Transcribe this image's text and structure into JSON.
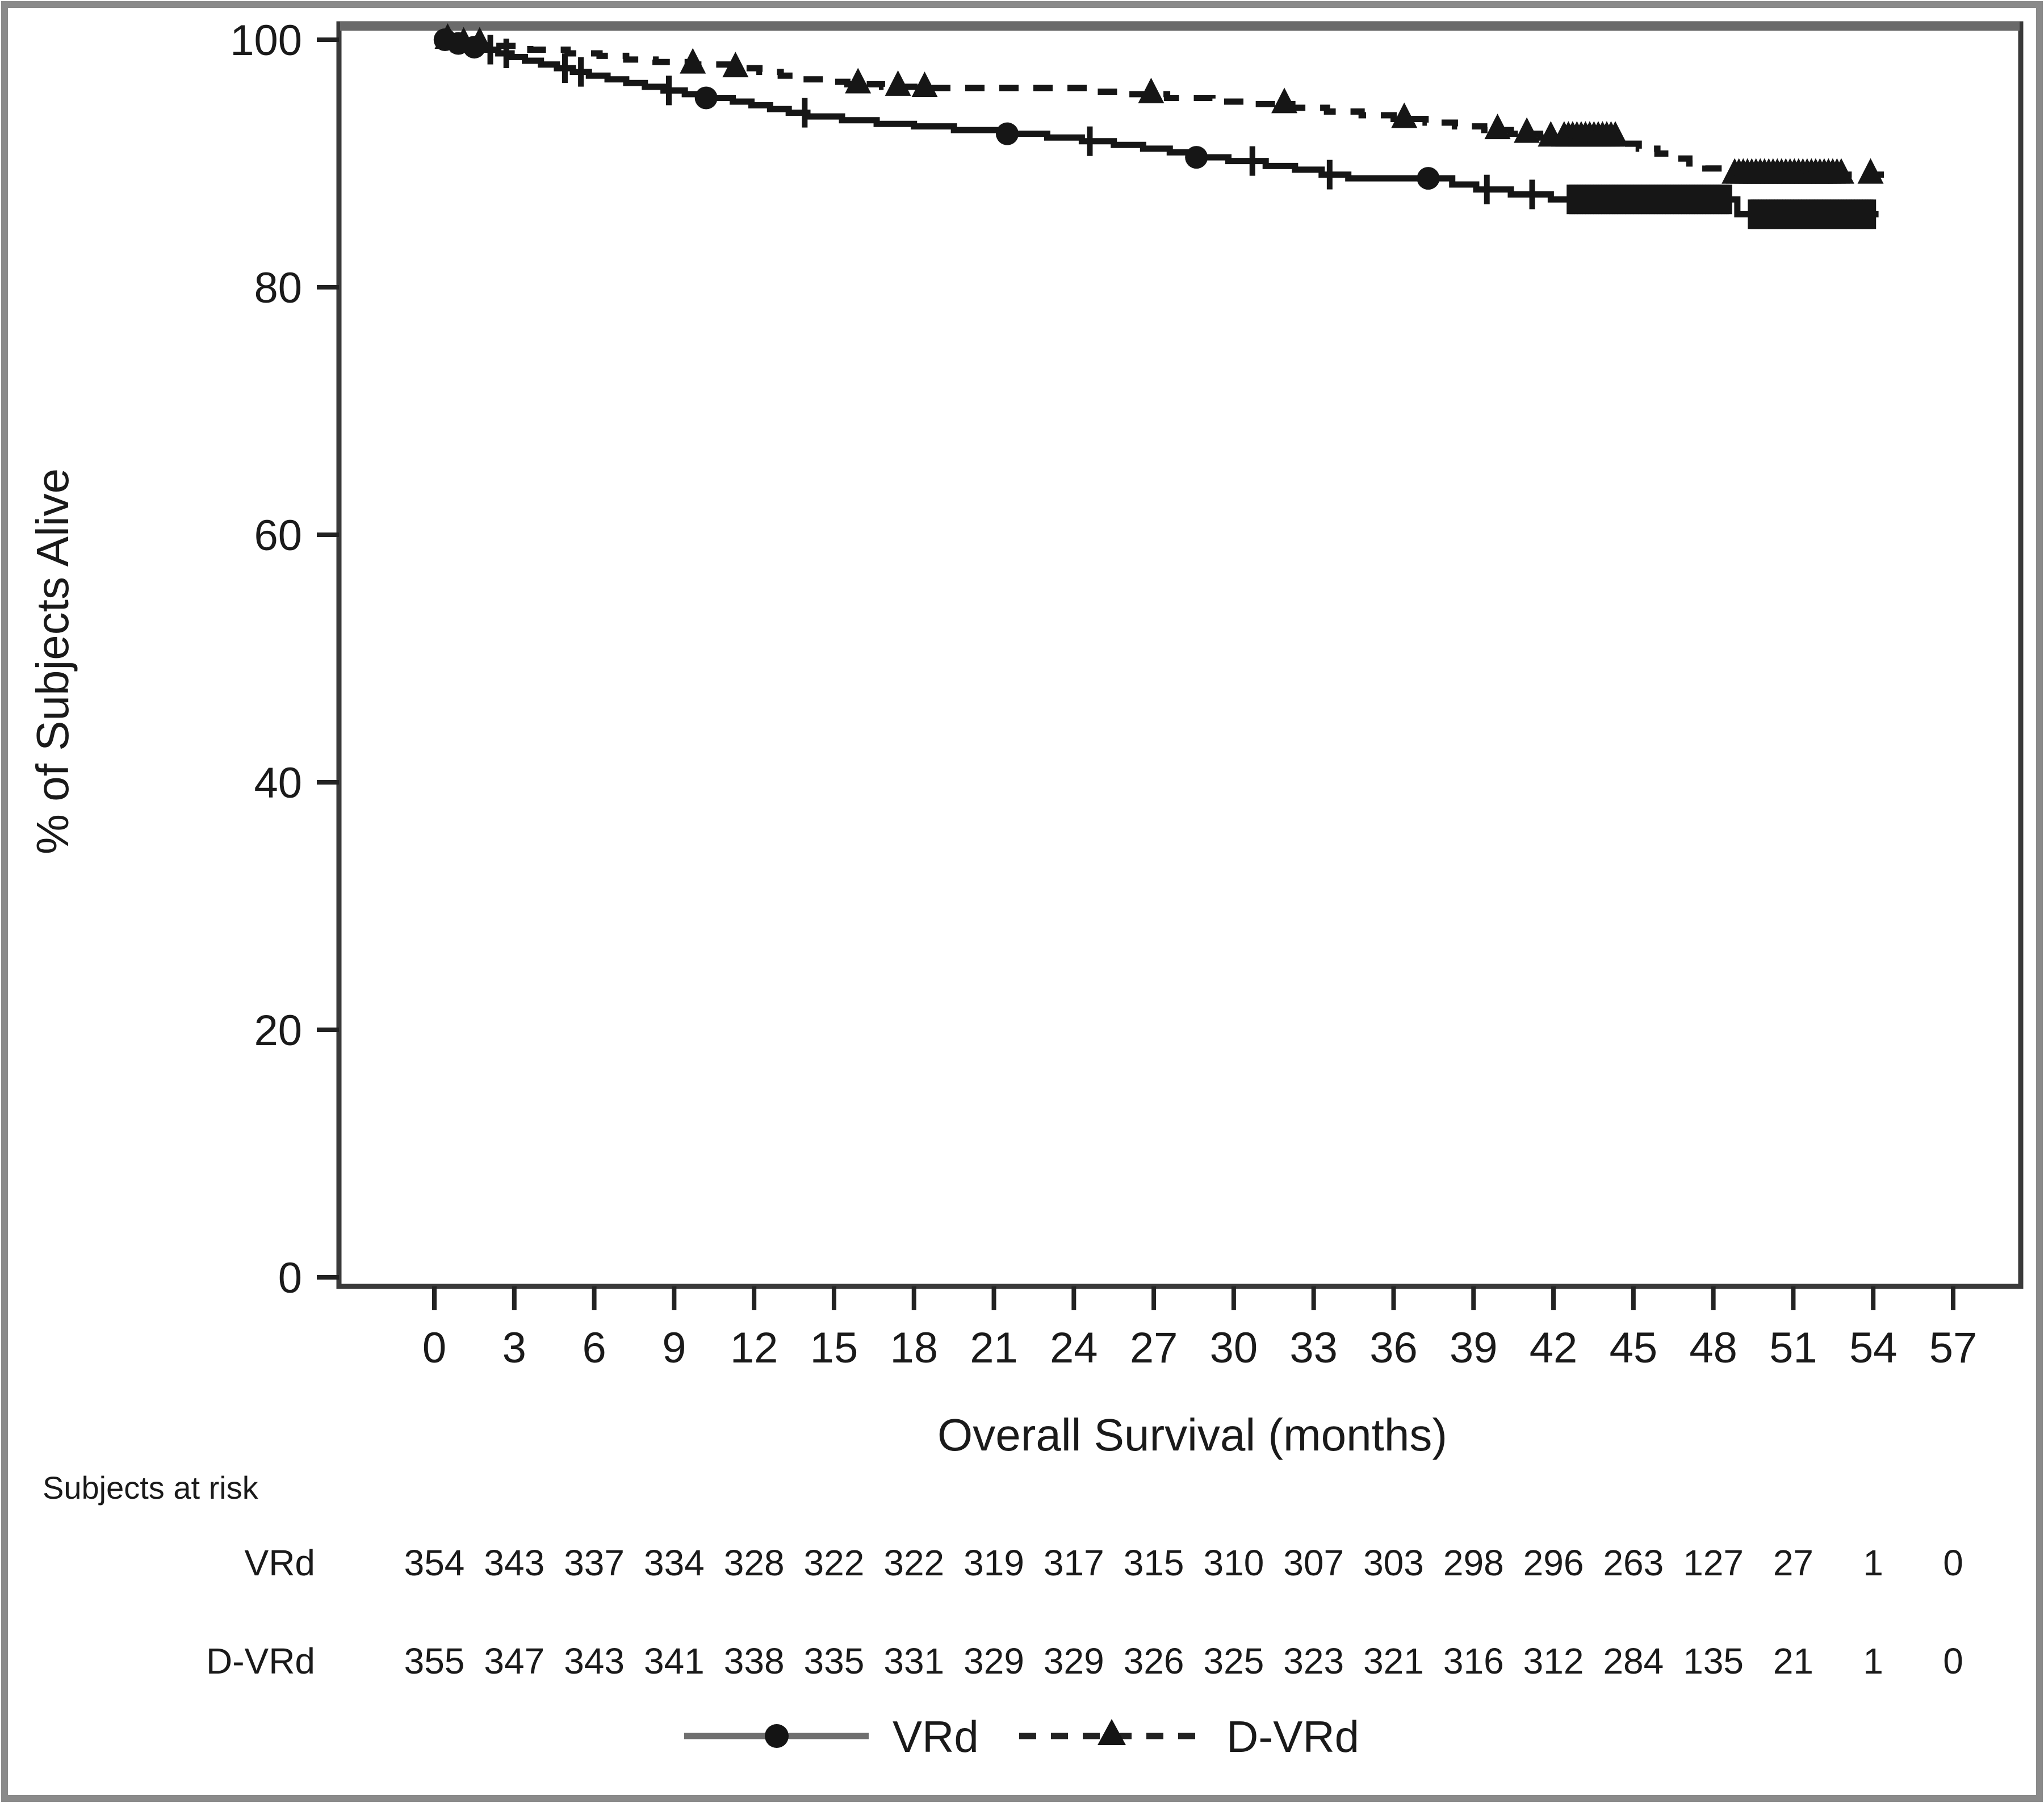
{
  "figure": {
    "border_color": "#8a8a8a",
    "plot_frame_color": "#3a3a3a",
    "plot_top_color": "#6a6a6a",
    "curve_color": "#161616",
    "legend_solid_line_color": "#6f6f6f",
    "text_color": "#1a1a1a"
  },
  "chart_data": {
    "type": "line",
    "subtype": "kaplan-meier-step",
    "title": "",
    "xlabel": "Overall Survival (months)",
    "ylabel": "% of Subjects Alive",
    "xlim": [
      0,
      57
    ],
    "ylim": [
      0,
      100
    ],
    "xticks": [
      0,
      3,
      6,
      9,
      12,
      15,
      18,
      21,
      24,
      27,
      30,
      33,
      36,
      39,
      42,
      45,
      48,
      51,
      54,
      57
    ],
    "yticks": [
      0,
      20,
      40,
      60,
      80,
      100
    ],
    "grid": false,
    "legend_position": "bottom-center",
    "series": [
      {
        "name": "VRd",
        "line": "solid",
        "marker": "circle",
        "end_time": 54.2,
        "steps": [
          [
            0,
            100
          ],
          [
            0.9,
            99.7
          ],
          [
            1.4,
            99.4
          ],
          [
            1.9,
            99.2
          ],
          [
            2.4,
            98.9
          ],
          [
            2.9,
            98.6
          ],
          [
            3.4,
            98.3
          ],
          [
            4.0,
            98.0
          ],
          [
            4.6,
            97.7
          ],
          [
            5.2,
            97.4
          ],
          [
            5.8,
            97.1
          ],
          [
            6.5,
            96.8
          ],
          [
            7.2,
            96.5
          ],
          [
            7.9,
            96.2
          ],
          [
            8.6,
            95.9
          ],
          [
            9.4,
            95.6
          ],
          [
            10.1,
            95.3
          ],
          [
            11.2,
            95.0
          ],
          [
            11.9,
            94.7
          ],
          [
            12.6,
            94.4
          ],
          [
            13.3,
            94.1
          ],
          [
            14.0,
            93.8
          ],
          [
            15.3,
            93.5
          ],
          [
            16.6,
            93.2
          ],
          [
            18.0,
            93.0
          ],
          [
            19.5,
            92.7
          ],
          [
            21.2,
            92.4
          ],
          [
            23.0,
            92.1
          ],
          [
            24.3,
            91.8
          ],
          [
            25.5,
            91.5
          ],
          [
            26.6,
            91.2
          ],
          [
            27.6,
            90.9
          ],
          [
            28.5,
            90.5
          ],
          [
            29.8,
            90.2
          ],
          [
            31.2,
            89.8
          ],
          [
            32.3,
            89.5
          ],
          [
            33.3,
            89.1
          ],
          [
            34.3,
            88.8
          ],
          [
            38.2,
            88.3
          ],
          [
            39.1,
            87.9
          ],
          [
            40.4,
            87.5
          ],
          [
            41.9,
            87.1
          ],
          [
            48.9,
            85.9
          ]
        ],
        "censor_dots": [
          0.4,
          0.9,
          1.5,
          10.2,
          21.5,
          28.6,
          37.3
        ],
        "censor_ticks": [
          2.1,
          2.7,
          4.9,
          5.5,
          8.8,
          13.9,
          24.6,
          30.7,
          33.6,
          39.5,
          41.2
        ],
        "censor_bands": [
          [
            42.6,
            48.7
          ],
          [
            49.4,
            54.1
          ]
        ]
      },
      {
        "name": "D-VRd",
        "line": "dashed",
        "marker": "triangle",
        "end_time": 54.4,
        "steps": [
          [
            0,
            100
          ],
          [
            1.0,
            99.7
          ],
          [
            2.3,
            99.5
          ],
          [
            3.6,
            99.2
          ],
          [
            5.0,
            98.9
          ],
          [
            6.2,
            98.7
          ],
          [
            7.2,
            98.4
          ],
          [
            8.3,
            98.2
          ],
          [
            9.6,
            98.0
          ],
          [
            11.2,
            97.7
          ],
          [
            12.2,
            97.4
          ],
          [
            13.0,
            97.1
          ],
          [
            13.8,
            96.8
          ],
          [
            14.6,
            96.6
          ],
          [
            15.5,
            96.4
          ],
          [
            16.8,
            96.2
          ],
          [
            18.2,
            96.1
          ],
          [
            24.5,
            95.8
          ],
          [
            26.0,
            95.6
          ],
          [
            27.5,
            95.3
          ],
          [
            29.2,
            95.0
          ],
          [
            30.8,
            94.8
          ],
          [
            32.2,
            94.5
          ],
          [
            33.5,
            94.2
          ],
          [
            34.8,
            93.9
          ],
          [
            36.0,
            93.6
          ],
          [
            37.2,
            93.3
          ],
          [
            38.3,
            93.0
          ],
          [
            39.4,
            92.7
          ],
          [
            40.4,
            92.4
          ],
          [
            41.5,
            92.1
          ],
          [
            44.5,
            91.6
          ],
          [
            45.2,
            91.2
          ],
          [
            45.9,
            90.8
          ],
          [
            46.5,
            90.4
          ],
          [
            47.1,
            90.0
          ],
          [
            47.7,
            89.6
          ],
          [
            48.5,
            89.1
          ]
        ],
        "censor_triangles": [
          0.5,
          1.1,
          1.7,
          9.7,
          11.3,
          15.9,
          17.4,
          18.4,
          26.9,
          31.9,
          36.4,
          39.9,
          41.0,
          41.9,
          53.9
        ],
        "censor_bands": [
          [
            42.4,
            44.4
          ],
          [
            48.8,
            52.9
          ]
        ]
      }
    ],
    "risk_table": {
      "header": "Subjects at risk",
      "times": [
        0,
        3,
        6,
        9,
        12,
        15,
        18,
        21,
        24,
        27,
        30,
        33,
        36,
        39,
        42,
        45,
        48,
        51,
        54,
        57
      ],
      "rows": [
        {
          "name": "VRd",
          "counts": [
            354,
            343,
            337,
            334,
            328,
            322,
            322,
            319,
            317,
            315,
            310,
            307,
            303,
            298,
            296,
            263,
            127,
            27,
            1,
            0
          ]
        },
        {
          "name": "D-VRd",
          "counts": [
            355,
            347,
            343,
            341,
            338,
            335,
            331,
            329,
            329,
            326,
            325,
            323,
            321,
            316,
            312,
            284,
            135,
            21,
            1,
            0
          ]
        }
      ]
    },
    "legend": [
      {
        "label": "VRd",
        "line": "solid",
        "marker": "circle"
      },
      {
        "label": "D-VRd",
        "line": "dashed",
        "marker": "triangle"
      }
    ]
  }
}
